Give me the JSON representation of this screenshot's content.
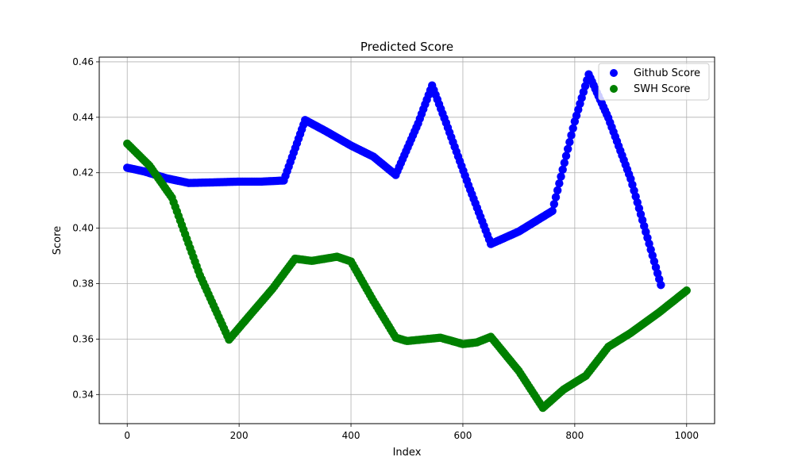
{
  "chart_data": {
    "type": "scatter",
    "title": "Predicted Score",
    "xlabel": "Index",
    "ylabel": "Score",
    "xlim": [
      -50,
      1050
    ],
    "ylim": [
      0.3295,
      0.4617
    ],
    "grid": true,
    "legend_position": "upper right",
    "x_ticks": [
      {
        "value": 0,
        "label": "0"
      },
      {
        "value": 200,
        "label": "200"
      },
      {
        "value": 400,
        "label": "400"
      },
      {
        "value": 600,
        "label": "600"
      },
      {
        "value": 800,
        "label": "800"
      },
      {
        "value": 1000,
        "label": "1000"
      }
    ],
    "y_ticks": [
      {
        "value": 0.34,
        "label": "0.34"
      },
      {
        "value": 0.36,
        "label": "0.36"
      },
      {
        "value": 0.38,
        "label": "0.38"
      },
      {
        "value": 0.4,
        "label": "0.40"
      },
      {
        "value": 0.42,
        "label": "0.42"
      },
      {
        "value": 0.44,
        "label": "0.44"
      },
      {
        "value": 0.46,
        "label": "0.46"
      }
    ],
    "series": [
      {
        "name": "Github Score",
        "color": "#0000ff",
        "x": [
          0,
          30,
          70,
          110,
          150,
          200,
          240,
          280,
          318,
          355,
          400,
          440,
          480,
          520,
          545,
          570,
          610,
          650,
          700,
          760,
          800,
          825,
          860,
          900,
          954
        ],
        "y": [
          0.4218,
          0.4205,
          0.418,
          0.4163,
          0.4165,
          0.4168,
          0.4168,
          0.4172,
          0.439,
          0.435,
          0.4298,
          0.4258,
          0.4192,
          0.4378,
          0.4515,
          0.438,
          0.4155,
          0.3943,
          0.3988,
          0.4062,
          0.4385,
          0.4555,
          0.4398,
          0.4178,
          0.3795
        ]
      },
      {
        "name": "SWH Score",
        "color": "#008000",
        "x": [
          0,
          40,
          80,
          130,
          182,
          220,
          260,
          300,
          330,
          375,
          400,
          440,
          480,
          500,
          560,
          600,
          625,
          650,
          700,
          743,
          780,
          820,
          860,
          900,
          950,
          1000
        ],
        "y": [
          0.4305,
          0.4225,
          0.411,
          0.383,
          0.3598,
          0.3688,
          0.3782,
          0.389,
          0.3882,
          0.3897,
          0.388,
          0.3738,
          0.3605,
          0.3593,
          0.3605,
          0.3582,
          0.3588,
          0.3608,
          0.3485,
          0.3352,
          0.3418,
          0.3468,
          0.3572,
          0.3622,
          0.3695,
          0.3775
        ]
      }
    ]
  }
}
